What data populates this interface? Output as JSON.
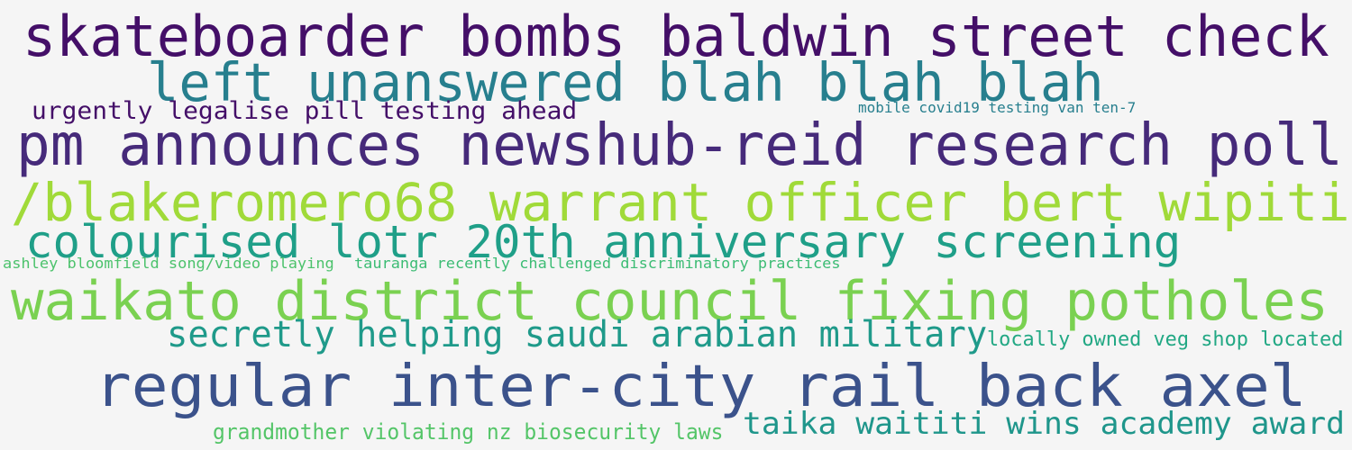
{
  "words": [
    {
      "text": "skateboarder bombs baldwin street check",
      "color": "#440f68"
    },
    {
      "text": "left unanswered blah blah blah",
      "color": "#277f8e"
    },
    {
      "text": "urgently legalise pill testing ahead",
      "color": "#440f68"
    },
    {
      "text": "mobile covid19 testing van ten-7",
      "color": "#277f8e"
    },
    {
      "text": "pm announces newshub-reid research poll",
      "color": "#462a7a"
    },
    {
      "text": "/blakeromero68 warrant officer bert wipiti",
      "color": "#a0da39"
    },
    {
      "text": "colourised lotr 20th anniversary screening",
      "color": "#1f9f88"
    },
    {
      "text": "ashley bloomfield song/video playing",
      "color": "#4cc26c"
    },
    {
      "text": "tauranga recently challenged discriminatory practices",
      "color": "#3cbc74"
    },
    {
      "text": "waikato district council fixing potholes",
      "color": "#7ad151"
    },
    {
      "text": "secretly helping saudi arabian military",
      "color": "#1f9a8a"
    },
    {
      "text": "locally owned veg shop located",
      "color": "#22a884"
    },
    {
      "text": "regular inter-city rail back axel",
      "color": "#3b528b"
    },
    {
      "text": "grandmother violating nz biosecurity laws",
      "color": "#54c568"
    },
    {
      "text": "taika waititi wins academy award",
      "color": "#1f968b"
    }
  ]
}
